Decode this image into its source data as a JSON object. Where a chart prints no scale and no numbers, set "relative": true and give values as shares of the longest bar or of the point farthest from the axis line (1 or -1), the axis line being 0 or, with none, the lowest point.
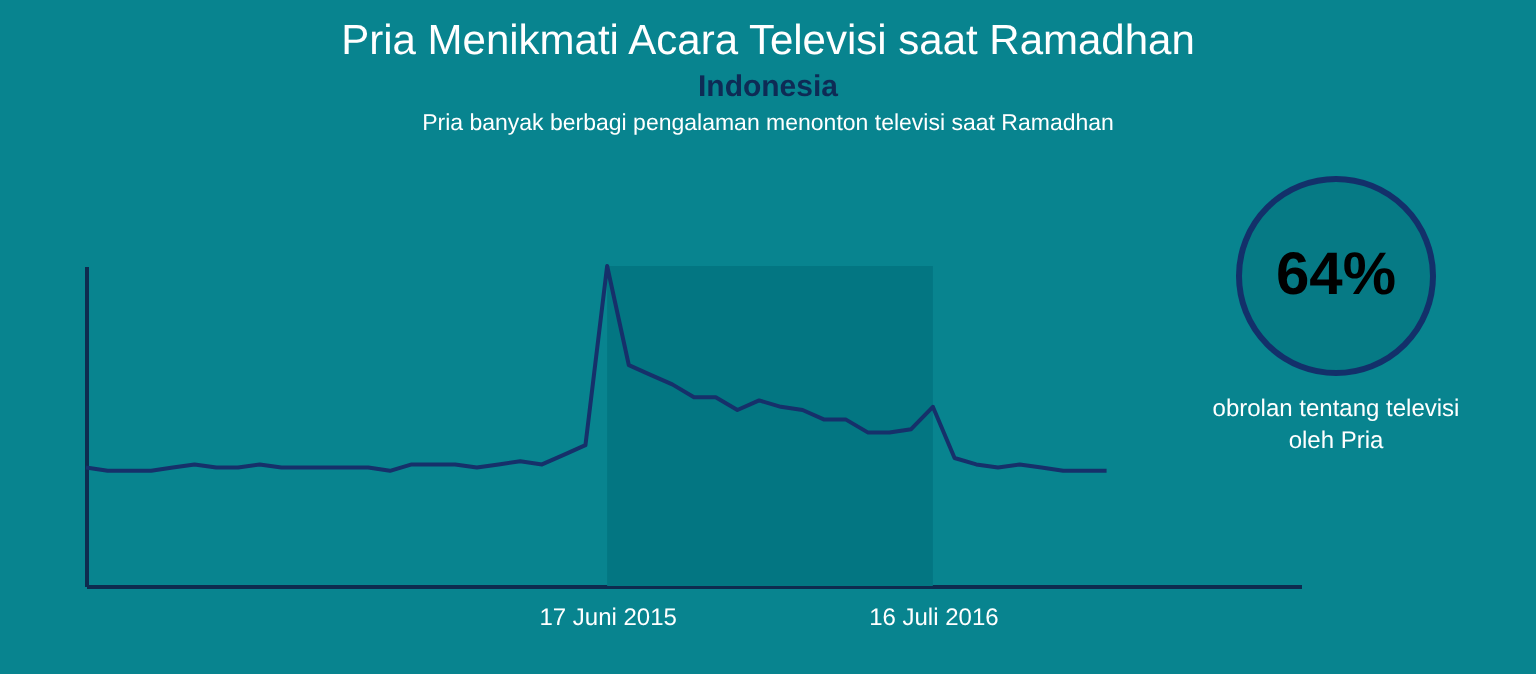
{
  "chart_data": [
    {
      "type": "line",
      "title": "Pria Menikmati Acara Televisi saat Ramadhan",
      "subtitle": "Indonesia",
      "annotations": [
        "Pria banyak berbagi pengalaman menonton televisi saat Ramadhan"
      ],
      "relative": true,
      "categories": [
        null,
        null,
        null,
        null,
        null,
        null,
        null,
        null,
        null,
        null,
        null,
        null,
        null,
        null,
        null,
        null,
        null,
        null,
        null,
        null,
        null,
        null,
        null,
        null,
        "17 Juni 2015",
        null,
        null,
        null,
        null,
        null,
        null,
        null,
        null,
        null,
        null,
        null,
        null,
        null,
        null,
        "16 Juli 2016",
        null,
        null,
        null,
        null,
        null,
        null,
        null,
        null,
        null,
        null,
        null,
        null,
        null,
        null,
        null,
        null,
        null
      ],
      "series": [
        {
          "color": "#16306a",
          "values": [
            0.37,
            0.36,
            0.36,
            0.36,
            0.37,
            0.38,
            0.37,
            0.37,
            0.38,
            0.37,
            0.37,
            0.37,
            0.37,
            0.37,
            0.36,
            0.38,
            0.38,
            0.38,
            0.37,
            0.38,
            0.39,
            0.38,
            0.41,
            0.44,
            1.0,
            0.69,
            0.66,
            0.63,
            0.59,
            0.59,
            0.55,
            0.58,
            0.56,
            0.55,
            0.52,
            0.52,
            0.48,
            0.48,
            0.49,
            0.56,
            0.4,
            0.38,
            0.37,
            0.38,
            0.37,
            0.36,
            0.36,
            0.36,
            null,
            null,
            null,
            null,
            null,
            null,
            null,
            null,
            null
          ]
        }
      ],
      "bands": [
        {
          "axis": "x",
          "from": "17 Juni 2015",
          "to": "16 Juli 2016",
          "color": "#037682"
        }
      ],
      "grid": false,
      "marker": "none",
      "line_style": "solid"
    },
    {
      "type": "other",
      "title": "64%",
      "annotations": [
        "obrolan tentang televisi oleh Pria"
      ]
    }
  ]
}
